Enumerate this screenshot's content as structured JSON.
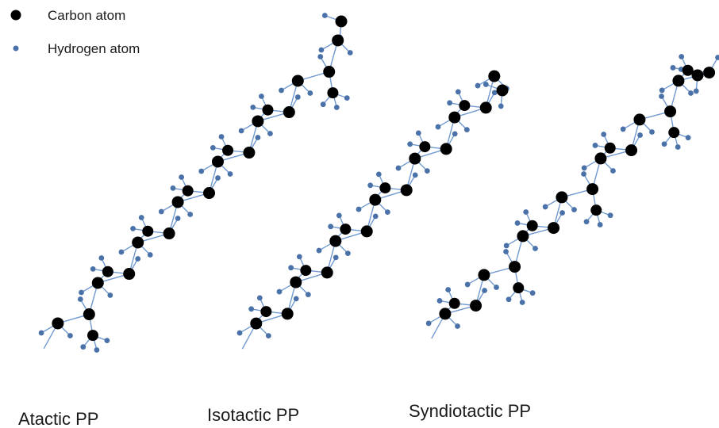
{
  "legend": {
    "items": [
      {
        "kind": "carbon",
        "label": "Carbon atom"
      },
      {
        "kind": "hydrogen",
        "label": "Hydrogen atom"
      }
    ]
  },
  "chains": [
    {
      "id": "atactic",
      "label": "Atactic PP"
    },
    {
      "id": "isotactic",
      "label": "Isotactic PP"
    },
    {
      "id": "syndiotactic",
      "label": "Syndiotactic PP"
    }
  ],
  "colors": {
    "carbon": "#000000",
    "hydrogen": "#4a72a8",
    "bond": "#7199cf",
    "text": "#1a1a1a"
  }
}
